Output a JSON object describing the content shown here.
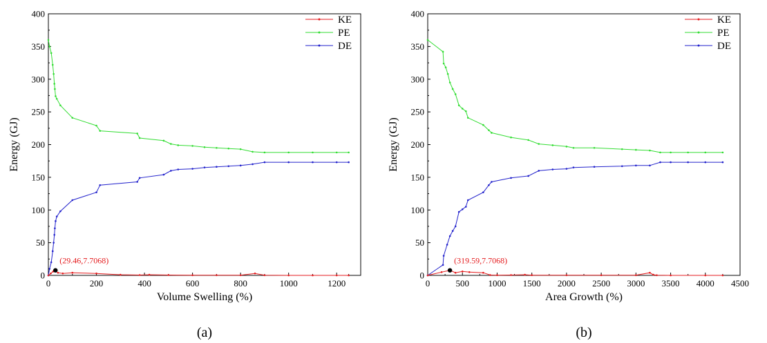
{
  "chart_data": [
    {
      "type": "line",
      "caption": "(a)",
      "xlabel": "Volume Swelling (%)",
      "ylabel": "Energy (GJ)",
      "xlim": [
        0,
        1300
      ],
      "ylim": [
        0,
        400
      ],
      "xticks": [
        0,
        200,
        400,
        600,
        800,
        1000,
        1200
      ],
      "yticks": [
        0,
        50,
        100,
        150,
        200,
        250,
        300,
        350,
        400
      ],
      "legend": "top-right",
      "annotation": {
        "text": "(29.46,7.7068)",
        "x": 29.46,
        "y": 7.7068
      },
      "series": [
        {
          "name": "KE",
          "color": "#e41a1c",
          "x": [
            0,
            10,
            20,
            29.46,
            40,
            60,
            100,
            200,
            300,
            380,
            420,
            500,
            600,
            700,
            800,
            860,
            900,
            1000,
            1100,
            1200,
            1250
          ],
          "y": [
            0,
            3,
            6,
            7.7068,
            4,
            3,
            4,
            3,
            1,
            0.5,
            1,
            0.5,
            0.2,
            0.2,
            0.2,
            3,
            0.2,
            0,
            0,
            0,
            0
          ]
        },
        {
          "name": "PE",
          "color": "#33dd33",
          "x": [
            0,
            5,
            12,
            18,
            22,
            25,
            27,
            30,
            35,
            50,
            100,
            200,
            215,
            370,
            380,
            480,
            510,
            540,
            600,
            650,
            700,
            750,
            800,
            850,
            900,
            1000,
            1100,
            1200,
            1250
          ],
          "y": [
            360,
            350,
            340,
            322,
            308,
            293,
            285,
            274,
            270,
            260,
            241,
            229,
            221,
            217,
            210,
            206,
            201,
            199,
            198,
            196,
            195,
            194,
            193,
            189,
            188,
            188,
            188,
            188,
            188
          ]
        },
        {
          "name": "DE",
          "color": "#2222cc",
          "x": [
            0,
            5,
            12,
            18,
            22,
            25,
            27,
            30,
            35,
            50,
            100,
            200,
            215,
            370,
            380,
            480,
            510,
            540,
            600,
            650,
            700,
            750,
            800,
            850,
            900,
            1000,
            1100,
            1200,
            1250
          ],
          "y": [
            0,
            10,
            20,
            37,
            50,
            62,
            72,
            83,
            90,
            98,
            115,
            127,
            138,
            143,
            149,
            154,
            160,
            162,
            163,
            165,
            166,
            167,
            168,
            170,
            173,
            173,
            173,
            173,
            173
          ]
        }
      ]
    },
    {
      "type": "line",
      "caption": "(b)",
      "xlabel": "Area Growth (%)",
      "ylabel": "Energy (GJ)",
      "xlim": [
        0,
        4500
      ],
      "ylim": [
        0,
        400
      ],
      "xticks": [
        0,
        500,
        1000,
        1500,
        2000,
        2500,
        3000,
        3500,
        4000,
        4500
      ],
      "yticks": [
        0,
        50,
        100,
        150,
        200,
        250,
        300,
        350,
        400
      ],
      "legend": "top-right",
      "annotation": {
        "text": "(319.59,7.7068)",
        "x": 319.59,
        "y": 7.7068
      },
      "series": [
        {
          "name": "KE",
          "color": "#e41a1c",
          "x": [
            0,
            200,
            319.59,
            400,
            500,
            600,
            800,
            900,
            1000,
            1200,
            1400,
            1500,
            2000,
            2500,
            3000,
            3200,
            3250,
            3300,
            3500,
            4000,
            4250
          ],
          "y": [
            0,
            5,
            7.7068,
            4,
            6,
            5,
            4,
            0.5,
            0.3,
            0.5,
            1,
            0.3,
            0.2,
            0.2,
            0.2,
            4,
            1,
            0.2,
            0,
            0,
            0
          ]
        },
        {
          "name": "PE",
          "color": "#33dd33",
          "x": [
            0,
            220,
            230,
            260,
            290,
            320,
            360,
            400,
            450,
            500,
            550,
            580,
            800,
            880,
            920,
            1200,
            1450,
            1600,
            1800,
            2000,
            2100,
            2400,
            2800,
            3000,
            3200,
            3350,
            3500,
            3750,
            4000,
            4250
          ],
          "y": [
            360,
            342,
            324,
            318,
            308,
            295,
            285,
            277,
            260,
            255,
            251,
            241,
            230,
            222,
            218,
            211,
            207,
            201,
            199,
            197,
            195,
            195,
            193,
            192,
            191,
            188,
            188,
            188,
            188,
            188
          ]
        },
        {
          "name": "DE",
          "color": "#2222cc",
          "x": [
            0,
            220,
            230,
            280,
            320,
            360,
            400,
            450,
            500,
            550,
            580,
            800,
            880,
            920,
            1200,
            1450,
            1600,
            1800,
            2000,
            2100,
            2400,
            2800,
            3000,
            3200,
            3350,
            3500,
            3750,
            4000,
            4250
          ],
          "y": [
            0,
            16,
            30,
            47,
            60,
            68,
            75,
            97,
            101,
            105,
            115,
            127,
            138,
            143,
            149,
            152,
            160,
            162,
            163,
            165,
            166,
            167,
            168,
            168,
            173,
            173,
            173,
            173,
            173
          ]
        }
      ]
    }
  ]
}
